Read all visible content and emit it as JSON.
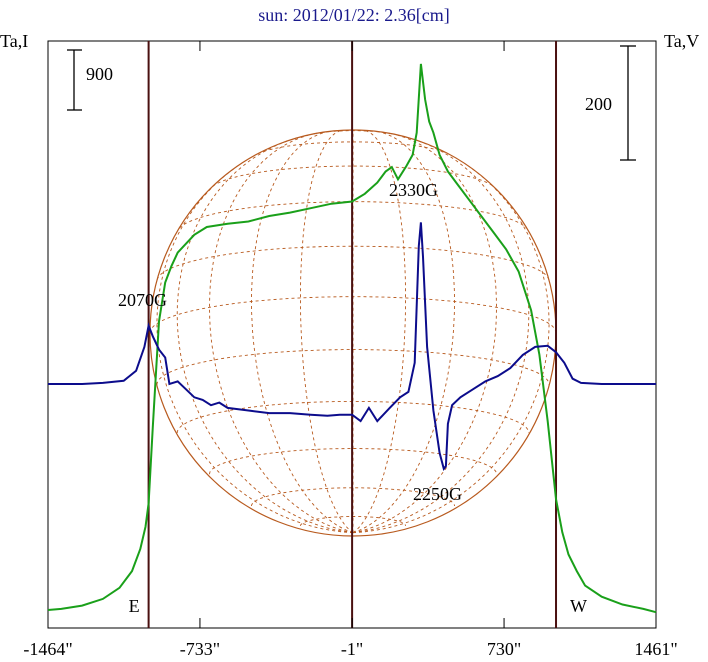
{
  "chart_data": {
    "type": "line",
    "title": "sun: 2012/01/22: 2.36[cm]",
    "left_axis_label": "Ta,I",
    "right_axis_label": "Ta,V",
    "x_ticks": [
      "-1464\"",
      "-733\"",
      "-1\"",
      "730\"",
      "1461\""
    ],
    "x_tick_values": [
      -1464,
      -733,
      -1,
      730,
      1461
    ],
    "xlim": [
      -1464,
      1461
    ],
    "scale_bar_left": "900",
    "scale_bar_right": "200",
    "limb_markers": [
      {
        "label": "E",
        "x": -980
      },
      {
        "label": "W",
        "x": 980
      }
    ],
    "vertical_lines_x": [
      -980,
      -1,
      980
    ],
    "annotations": [
      {
        "text": "2070G",
        "x": -980
      },
      {
        "text": "2330G",
        "x": 330
      },
      {
        "text": "2250G",
        "x": 450
      }
    ],
    "colors": {
      "intensity": "#1aa01a",
      "polarization": "#0c0c8c",
      "grid": "#b85a1e",
      "markers": "#4a1010",
      "title": "#1a1a8c"
    },
    "series": [
      {
        "label": "Ta,I",
        "axis": "left",
        "x": [
          -1464,
          -1400,
          -1300,
          -1200,
          -1120,
          -1060,
          -1020,
          -995,
          -980,
          -960,
          -930,
          -900,
          -870,
          -840,
          -800,
          -760,
          -700,
          -600,
          -500,
          -400,
          -300,
          -200,
          -100,
          -1,
          60,
          120,
          160,
          190,
          220,
          260,
          290,
          310,
          330,
          350,
          370,
          390,
          420,
          460,
          500,
          560,
          620,
          680,
          740,
          800,
          860,
          900,
          940,
          980,
          1010,
          1040,
          1080,
          1120,
          1200,
          1300,
          1400,
          1461
        ],
        "y": [
          0.0,
          0.01,
          0.04,
          0.1,
          0.2,
          0.35,
          0.55,
          0.75,
          0.96,
          1.65,
          2.6,
          2.95,
          3.1,
          3.22,
          3.3,
          3.38,
          3.45,
          3.48,
          3.5,
          3.55,
          3.58,
          3.62,
          3.66,
          3.68,
          3.75,
          3.85,
          3.95,
          3.99,
          3.88,
          4.0,
          4.1,
          4.3,
          4.92,
          4.6,
          4.4,
          4.3,
          4.1,
          3.95,
          3.85,
          3.7,
          3.55,
          3.4,
          3.25,
          3.05,
          2.7,
          2.3,
          1.7,
          1.0,
          0.7,
          0.5,
          0.35,
          0.22,
          0.12,
          0.05,
          0.01,
          -0.02
        ]
      },
      {
        "label": "Ta,V",
        "axis": "right",
        "x": [
          -1464,
          -1300,
          -1200,
          -1100,
          -1040,
          -1000,
          -980,
          -960,
          -930,
          -900,
          -880,
          -840,
          -800,
          -760,
          -720,
          -680,
          -640,
          -600,
          -500,
          -400,
          -300,
          -200,
          -120,
          -60,
          -1,
          40,
          80,
          120,
          180,
          230,
          270,
          300,
          320,
          330,
          340,
          360,
          390,
          420,
          440,
          450,
          460,
          480,
          520,
          580,
          640,
          700,
          760,
          820,
          880,
          940,
          980,
          1020,
          1060,
          1100,
          1200,
          1300,
          1461
        ],
        "y": [
          0.0,
          0.0,
          0.02,
          0.06,
          0.25,
          0.7,
          1.1,
          0.9,
          0.65,
          0.5,
          0.0,
          0.05,
          -0.1,
          -0.25,
          -0.3,
          -0.4,
          -0.35,
          -0.45,
          -0.5,
          -0.55,
          -0.55,
          -0.58,
          -0.6,
          -0.58,
          -0.58,
          -0.7,
          -0.45,
          -0.7,
          -0.45,
          -0.25,
          -0.15,
          0.4,
          2.6,
          3.05,
          2.4,
          0.7,
          -0.5,
          -1.3,
          -1.6,
          -1.55,
          -0.75,
          -0.4,
          -0.25,
          -0.1,
          0.05,
          0.15,
          0.3,
          0.55,
          0.7,
          0.72,
          0.6,
          0.4,
          0.1,
          0.02,
          0.0,
          0.0,
          0.0
        ]
      }
    ]
  }
}
